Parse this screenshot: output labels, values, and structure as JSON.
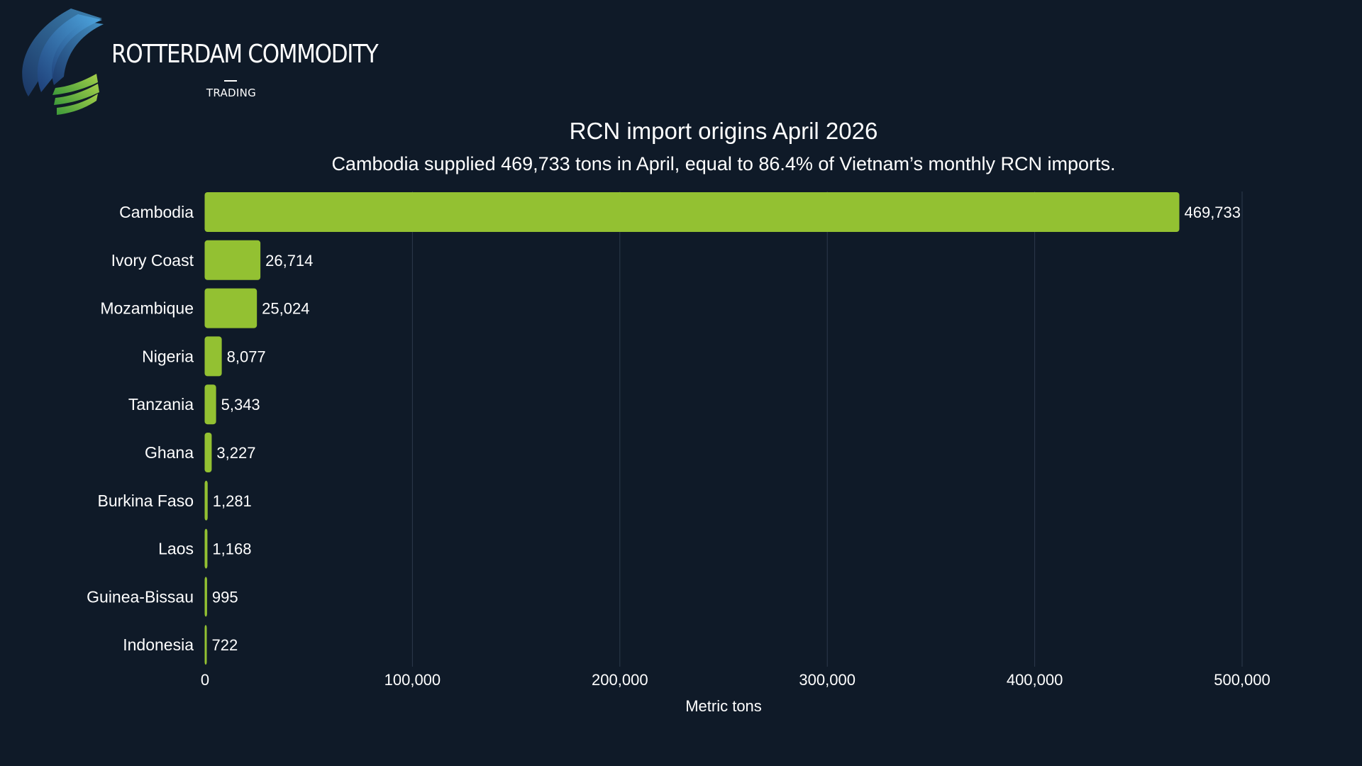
{
  "brand": {
    "name": "ROTTERDAM COMMODITY",
    "sub": "TRADING",
    "colors": {
      "blue": "#3f8fd0",
      "green": "#8fc63f"
    }
  },
  "chart_data": {
    "type": "bar",
    "orientation": "horizontal",
    "title": "RCN import origins April 2026",
    "subtitle": "Cambodia supplied 469,733 tons in April, equal to 86.4% of Vietnam’s monthly RCN imports.",
    "categories": [
      "Cambodia",
      "Ivory Coast",
      "Mozambique",
      "Nigeria",
      "Tanzania",
      "Ghana",
      "Burkina Faso",
      "Laos",
      "Guinea-Bissau",
      "Indonesia"
    ],
    "values": [
      469733,
      26714,
      25024,
      8077,
      5343,
      3227,
      1281,
      1168,
      995,
      722
    ],
    "value_labels": [
      "469,733",
      "26,714",
      "25,024",
      "8,077",
      "5,343",
      "3,227",
      "1,281",
      "1,168",
      "995",
      "722"
    ],
    "xlabel": "Metric tons",
    "ylabel": "",
    "xlim": [
      0,
      500000
    ],
    "xticks": [
      0,
      100000,
      200000,
      300000,
      400000,
      500000
    ],
    "xtick_labels": [
      "0",
      "100,000",
      "200,000",
      "300,000",
      "400,000",
      "500,000"
    ],
    "grid": true,
    "colors": {
      "bar": "#93c132",
      "grid": "#2c3a4c",
      "background": "#0f1a28"
    }
  }
}
